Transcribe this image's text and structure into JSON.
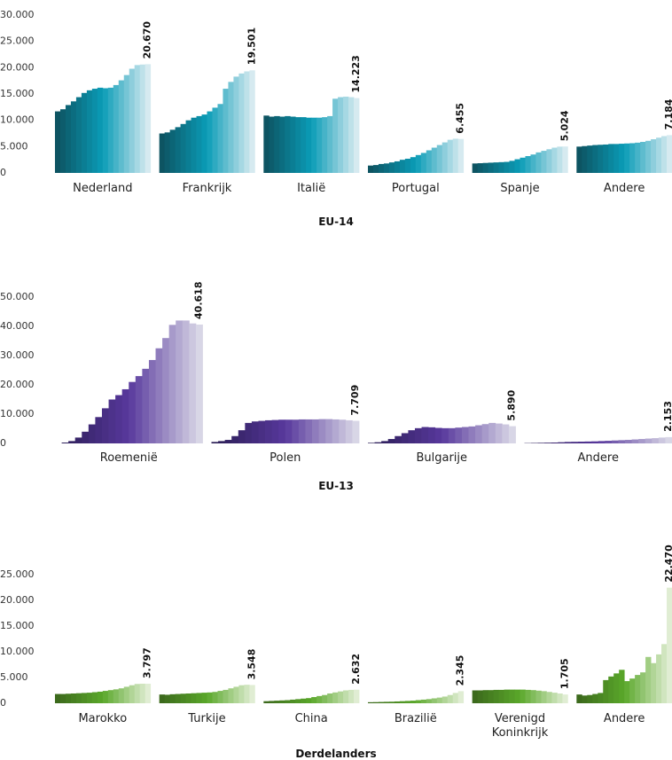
{
  "chart_data": [
    {
      "type": "bar",
      "title": "EU-14",
      "ylim": [
        0,
        30000
      ],
      "yticks": [
        0,
        {
          "value": 5000,
          "label": "5.000"
        },
        {
          "value": 10000,
          "label": "10.000"
        },
        {
          "value": 15000,
          "label": "15.000"
        },
        {
          "value": 20000,
          "label": "20.000"
        },
        {
          "value": 25000,
          "label": "25.000"
        },
        {
          "value": 30000,
          "label": "30.000"
        }
      ],
      "colors": [
        "#0d5462",
        "#0a9cb7",
        "#d6eaf0"
      ],
      "groups": [
        {
          "name": "Nederland",
          "values": [
            11700,
            12100,
            12900,
            13600,
            14400,
            15200,
            15700,
            16000,
            16200,
            16100,
            16200,
            16700,
            17600,
            18600,
            19800,
            20500,
            20600,
            20670
          ],
          "value_label": "20.670"
        },
        {
          "name": "Frankrijk",
          "values": [
            7500,
            7700,
            8200,
            8700,
            9300,
            10000,
            10500,
            10800,
            11100,
            11700,
            12400,
            13100,
            16000,
            17300,
            18300,
            18900,
            19300,
            19501
          ],
          "value_label": "19.501"
        },
        {
          "name": "Italië",
          "values": [
            10900,
            10700,
            10800,
            10700,
            10800,
            10700,
            10600,
            10600,
            10500,
            10500,
            10500,
            10600,
            10800,
            14100,
            14400,
            14500,
            14400,
            14223
          ],
          "value_label": "14.223"
        },
        {
          "name": "Portugal",
          "values": [
            1400,
            1500,
            1700,
            1800,
            2000,
            2200,
            2500,
            2700,
            3000,
            3400,
            3800,
            4300,
            4800,
            5300,
            5800,
            6300,
            6500,
            6455
          ],
          "value_label": "6.455"
        },
        {
          "name": "Spanje",
          "values": [
            1800,
            1850,
            1900,
            1950,
            2000,
            2050,
            2100,
            2300,
            2600,
            2900,
            3200,
            3500,
            3900,
            4200,
            4500,
            4800,
            5000,
            5024
          ],
          "value_label": "5.024"
        },
        {
          "name": "Andere",
          "values": [
            5000,
            5100,
            5200,
            5300,
            5350,
            5400,
            5500,
            5500,
            5550,
            5600,
            5650,
            5750,
            5900,
            6100,
            6400,
            6700,
            7000,
            7184
          ],
          "value_label": "7.184"
        }
      ]
    },
    {
      "type": "bar",
      "title": "EU-13",
      "ylim": [
        0,
        50000
      ],
      "yticks": [
        0,
        {
          "value": 10000,
          "label": "10.000"
        },
        {
          "value": 20000,
          "label": "20.000"
        },
        {
          "value": 30000,
          "label": "30.000"
        },
        {
          "value": 40000,
          "label": "40.000"
        },
        {
          "value": 50000,
          "label": "50.000"
        }
      ],
      "colors": [
        "#2a1d55",
        "#58389c",
        "#d8d6e6"
      ],
      "groups": [
        {
          "name": "Roemenië",
          "values": [
            0,
            300,
            800,
            2000,
            4000,
            6500,
            9000,
            12000,
            15000,
            16500,
            18500,
            21000,
            23000,
            25500,
            28500,
            32500,
            36000,
            40500,
            42000,
            42000,
            41000,
            40618
          ],
          "value_label": "40.618"
        },
        {
          "name": "Polen",
          "values": [
            500,
            800,
            1200,
            2500,
            4500,
            7000,
            7500,
            7700,
            7900,
            8000,
            8100,
            8100,
            8100,
            8200,
            8200,
            8200,
            8300,
            8300,
            8200,
            8100,
            7900,
            7709
          ],
          "value_label": "7.709"
        },
        {
          "name": "Bulgarije",
          "values": [
            200,
            400,
            800,
            1500,
            2500,
            3500,
            4500,
            5200,
            5600,
            5500,
            5300,
            5200,
            5200,
            5400,
            5600,
            5800,
            6200,
            6600,
            7000,
            6800,
            6500,
            5890
          ],
          "value_label": "5.890"
        },
        {
          "name": "Andere",
          "values": [
            100,
            150,
            200,
            250,
            300,
            400,
            500,
            550,
            600,
            650,
            700,
            800,
            900,
            1000,
            1100,
            1200,
            1350,
            1500,
            1650,
            1800,
            2000,
            2153
          ],
          "value_label": "2.153"
        }
      ]
    },
    {
      "type": "bar",
      "title": "Derdelanders",
      "ylim": [
        0,
        25000
      ],
      "yticks": [
        0,
        {
          "value": 5000,
          "label": "5.000"
        },
        {
          "value": 10000,
          "label": "10.000"
        },
        {
          "value": 15000,
          "label": "15.000"
        },
        {
          "value": 20000,
          "label": "20.000"
        },
        {
          "value": 25000,
          "label": "25.000"
        }
      ],
      "colors": [
        "#3c6a1c",
        "#5aa82a",
        "#e0edd3"
      ],
      "groups": [
        {
          "name": "Marokko",
          "values": [
            1800,
            1800,
            1850,
            1900,
            1950,
            2000,
            2050,
            2150,
            2250,
            2400,
            2550,
            2700,
            2900,
            3200,
            3500,
            3750,
            3800,
            3797
          ],
          "value_label": "3.797"
        },
        {
          "name": "Turkije",
          "values": [
            1700,
            1650,
            1750,
            1800,
            1850,
            1900,
            1950,
            2000,
            2050,
            2100,
            2200,
            2400,
            2600,
            2900,
            3200,
            3500,
            3600,
            3548
          ],
          "value_label": "3.548"
        },
        {
          "name": "China",
          "values": [
            400,
            450,
            500,
            550,
            600,
            700,
            800,
            900,
            1000,
            1200,
            1400,
            1600,
            1900,
            2100,
            2300,
            2500,
            2600,
            2632
          ],
          "value_label": "2.632"
        },
        {
          "name": "Brazilië",
          "values": [
            200,
            220,
            250,
            280,
            300,
            350,
            400,
            450,
            500,
            600,
            700,
            800,
            950,
            1100,
            1300,
            1600,
            2000,
            2345
          ],
          "value_label": "2.345"
        },
        {
          "name": "Verenigd Koninkrijk",
          "values": [
            2500,
            2500,
            2550,
            2550,
            2600,
            2600,
            2650,
            2650,
            2650,
            2650,
            2600,
            2550,
            2450,
            2350,
            2200,
            2050,
            1900,
            1705
          ],
          "value_label": "1.705"
        },
        {
          "name": "Andere",
          "values": [
            1700,
            1500,
            1600,
            1800,
            2000,
            4500,
            5200,
            5800,
            6500,
            4300,
            4800,
            5500,
            6000,
            9000,
            7800,
            9500,
            11500,
            22470
          ],
          "value_label": "22.470"
        }
      ]
    }
  ]
}
